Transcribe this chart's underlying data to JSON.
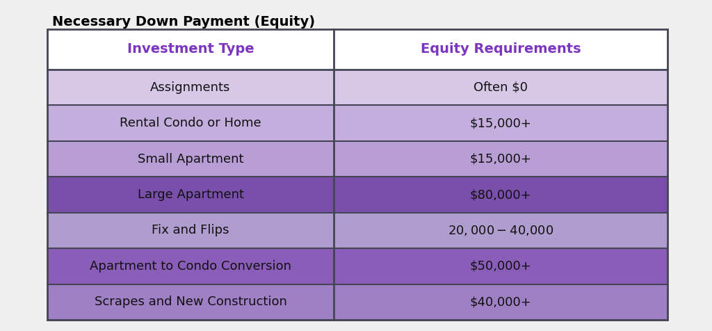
{
  "title": "Necessary Down Payment (Equity)",
  "col1_header": "Investment Type",
  "col2_header": "Equity Requirements",
  "rows": [
    {
      "investment": "Assignments",
      "equity": "Often $0"
    },
    {
      "investment": "Rental Condo or Home",
      "equity": "$15,000+"
    },
    {
      "investment": "Small Apartment",
      "equity": "$15,000+"
    },
    {
      "investment": "Large Apartment",
      "equity": "$80,000+"
    },
    {
      "investment": "Fix and Flips",
      "equity": "$20,000-$40,000"
    },
    {
      "investment": "Apartment to Condo Conversion",
      "equity": "$50,000+"
    },
    {
      "investment": "Scrapes and New Construction",
      "equity": "$40,000+"
    }
  ],
  "row_colors": [
    "#d8c8e8",
    "#c4aedd",
    "#b89ed5",
    "#7a4fab",
    "#b09dd0",
    "#8a5db8",
    "#a080c5"
  ],
  "header_bg": "#ffffff",
  "header_text_color": "#7b35c0",
  "title_color": "#000000",
  "row_text_color": "#111111",
  "border_color": "#444455",
  "title_fontsize": 14,
  "header_fontsize": 14,
  "row_fontsize": 13,
  "background_color": "#f0f0f0"
}
